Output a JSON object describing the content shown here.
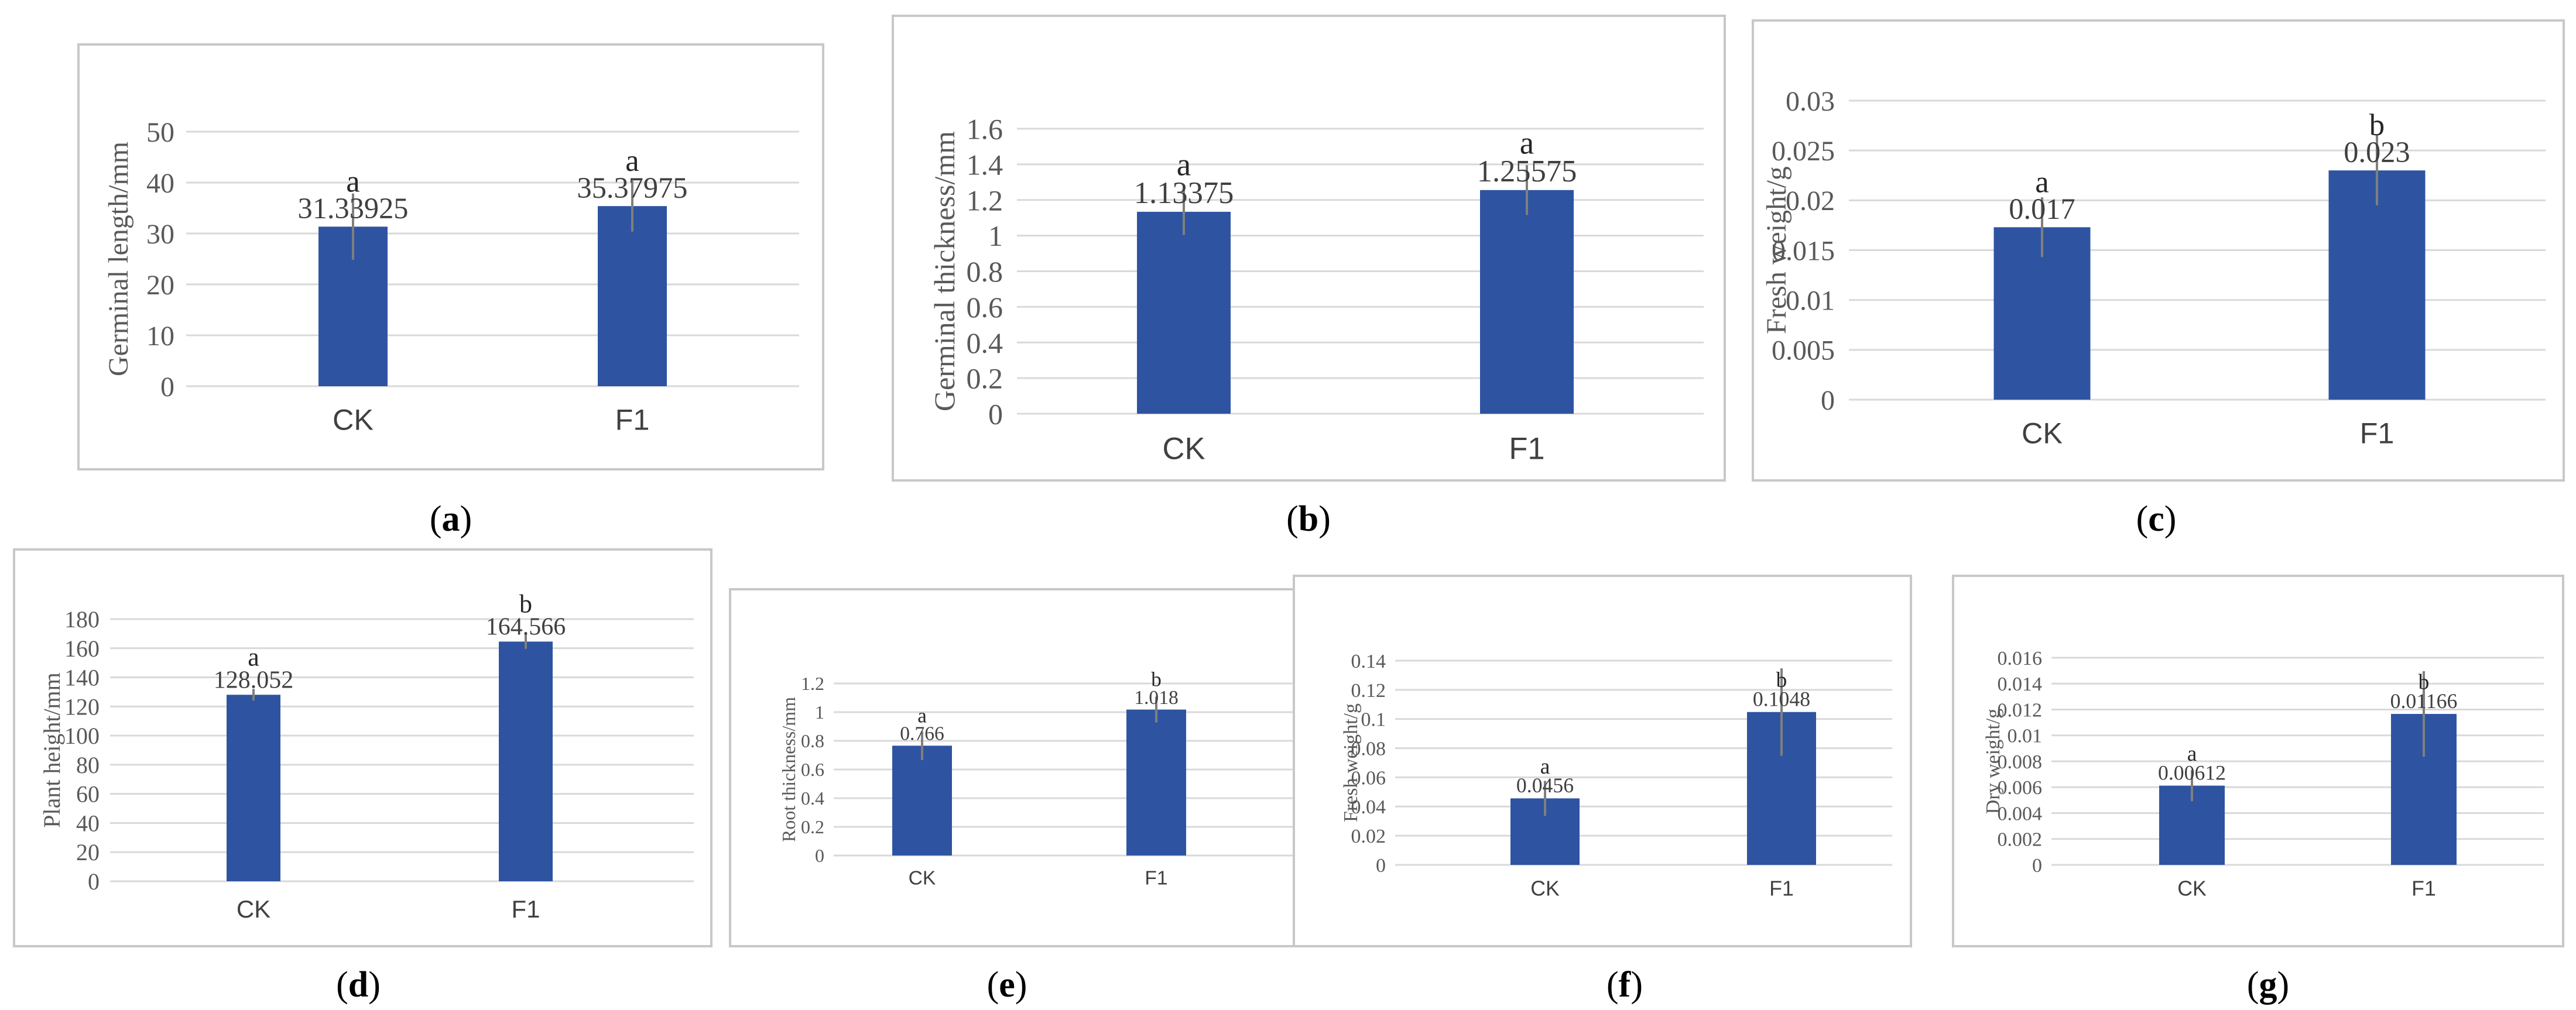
{
  "chart_data": [
    {
      "id": "a",
      "type": "bar",
      "caption": "a",
      "ylabel": "Germinal length/mm",
      "categories": [
        "CK",
        "F1"
      ],
      "values": [
        31.33925,
        35.37975
      ],
      "value_labels": [
        "31.33925",
        "35.37975"
      ],
      "significance": [
        "a",
        "a"
      ],
      "errors": [
        6.5,
        5.0
      ],
      "ylim": [
        0,
        50
      ],
      "yticks": [
        "0",
        "10",
        "20",
        "30",
        "40",
        "50"
      ],
      "tick_values": [
        0,
        10,
        20,
        30,
        40,
        50
      ]
    },
    {
      "id": "b",
      "type": "bar",
      "caption": "b",
      "ylabel": "Germinal thickness/mm",
      "categories": [
        "CK",
        "F1"
      ],
      "values": [
        1.13375,
        1.25575
      ],
      "value_labels": [
        "1.13375",
        "1.25575"
      ],
      "significance": [
        "a",
        "a"
      ],
      "errors": [
        0.13,
        0.14
      ],
      "ylim": [
        0,
        1.6
      ],
      "yticks": [
        "0",
        "0.2",
        "0.4",
        "0.6",
        "0.8",
        "1",
        "1.2",
        "1.4",
        "1.6"
      ],
      "tick_values": [
        0,
        0.2,
        0.4,
        0.6,
        0.8,
        1,
        1.2,
        1.4,
        1.6
      ]
    },
    {
      "id": "c",
      "type": "bar",
      "caption": "c",
      "ylabel": "Fresh weight/g",
      "categories": [
        "CK",
        "F1"
      ],
      "values": [
        0.0173,
        0.023
      ],
      "value_labels": [
        "0.017",
        "0.023"
      ],
      "significance": [
        "a",
        "b"
      ],
      "errors": [
        0.003,
        0.0035
      ],
      "ylim": [
        0,
        0.03
      ],
      "yticks": [
        "0",
        "0.005",
        "0.01",
        "0.015",
        "0.02",
        "0.025",
        "0.03"
      ],
      "tick_values": [
        0,
        0.005,
        0.01,
        0.015,
        0.02,
        0.025,
        0.03
      ]
    },
    {
      "id": "d",
      "type": "bar",
      "caption": "d",
      "ylabel": "Plant  height/mm",
      "categories": [
        "CK",
        "F1"
      ],
      "values": [
        128.052,
        164.566
      ],
      "value_labels": [
        "128.052",
        "164.566"
      ],
      "significance": [
        "a",
        "b"
      ],
      "errors": [
        4,
        5
      ],
      "ylim": [
        0,
        180
      ],
      "yticks": [
        "0",
        "20",
        "40",
        "60",
        "80",
        "100",
        "120",
        "140",
        "160",
        "180"
      ],
      "tick_values": [
        0,
        20,
        40,
        60,
        80,
        100,
        120,
        140,
        160,
        180
      ]
    },
    {
      "id": "e",
      "type": "bar",
      "caption": "e",
      "ylabel": "Root thickness/mm",
      "categories": [
        "CK",
        "F1"
      ],
      "values": [
        0.766,
        1.018
      ],
      "value_labels": [
        "0.766",
        "1.018"
      ],
      "significance": [
        "a",
        "b"
      ],
      "errors": [
        0.1,
        0.09
      ],
      "ylim": [
        0,
        1.2
      ],
      "yticks": [
        "0",
        "0.2",
        "0.4",
        "0.6",
        "0.8",
        "1",
        "1.2"
      ],
      "tick_values": [
        0,
        0.2,
        0.4,
        0.6,
        0.8,
        1,
        1.2
      ]
    },
    {
      "id": "f",
      "type": "bar",
      "caption": "f",
      "ylabel": "Fresh weight/g",
      "categories": [
        "CK",
        "F1"
      ],
      "values": [
        0.0456,
        0.1048
      ],
      "value_labels": [
        "0.0456",
        "0.1048"
      ],
      "significance": [
        "a",
        "b"
      ],
      "errors": [
        0.012,
        0.03
      ],
      "ylim": [
        0,
        0.14
      ],
      "yticks": [
        "0",
        "0.02",
        "0.04",
        "0.06",
        "0.08",
        "0.1",
        "0.12",
        "0.14"
      ],
      "tick_values": [
        0,
        0.02,
        0.04,
        0.06,
        0.08,
        0.1,
        0.12,
        0.14
      ]
    },
    {
      "id": "g",
      "type": "bar",
      "caption": "g",
      "ylabel": "Dry weight/g",
      "categories": [
        "CK",
        "F1"
      ],
      "values": [
        0.00612,
        0.01166
      ],
      "value_labels": [
        "0.00612",
        "0.01166"
      ],
      "significance": [
        "a",
        "b"
      ],
      "errors": [
        0.0012,
        0.0033
      ],
      "ylim": [
        0,
        0.016
      ],
      "yticks": [
        "0",
        "0.002",
        "0.004",
        "0.006",
        "0.008",
        "0.01",
        "0.012",
        "0.014",
        "0.016"
      ],
      "tick_values": [
        0,
        0.002,
        0.004,
        0.006,
        0.008,
        0.01,
        0.012,
        0.014,
        0.016
      ]
    }
  ],
  "colors": {
    "bar": "#2e54a1",
    "grid": "#d9d9d9",
    "error": "#7f7f7f",
    "frame": "#c8c8c8"
  }
}
